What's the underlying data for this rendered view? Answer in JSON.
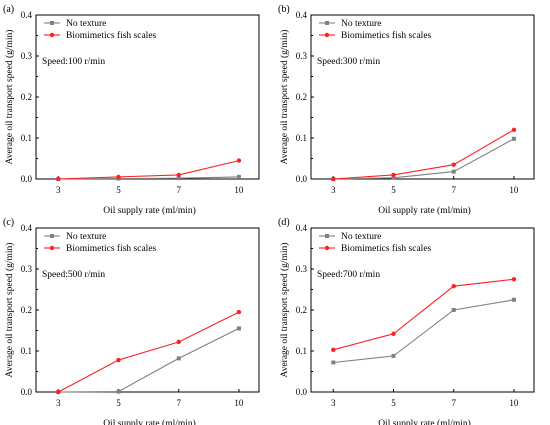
{
  "chart_data": [
    {
      "type": "line",
      "panel_label": "(a)",
      "annotation": "Speed:100 r/min",
      "xlabel": "Oil supply rate (ml/min)",
      "ylabel": "Average oil transport speed (g/min)",
      "categories": [
        "3",
        "5",
        "7",
        "10"
      ],
      "ylim": [
        0,
        0.4
      ],
      "yticks": [
        "0.0",
        "0.1",
        "0.2",
        "0.3",
        "0.4"
      ],
      "legend_position": "top-left",
      "series": [
        {
          "name": "No texture",
          "color": "#808080",
          "values": [
            0.0,
            0.001,
            0.002,
            0.005
          ]
        },
        {
          "name": "Biomimetics fish scales",
          "color": "#ff2020",
          "values": [
            0.0,
            0.005,
            0.01,
            0.045
          ]
        }
      ]
    },
    {
      "type": "line",
      "panel_label": "(b)",
      "annotation": "Speed:300 r/min",
      "xlabel": "Oil supply rate (ml/min)",
      "ylabel": "Average oil transport speed (g/min)",
      "categories": [
        "3",
        "5",
        "7",
        "10"
      ],
      "ylim": [
        0,
        0.4
      ],
      "yticks": [
        "0.0",
        "0.1",
        "0.2",
        "0.3",
        "0.4"
      ],
      "legend_position": "top-left",
      "series": [
        {
          "name": "No texture",
          "color": "#808080",
          "values": [
            0.0,
            0.003,
            0.018,
            0.098
          ]
        },
        {
          "name": "Biomimetics fish scales",
          "color": "#ff2020",
          "values": [
            0.0,
            0.01,
            0.035,
            0.12
          ]
        }
      ]
    },
    {
      "type": "line",
      "panel_label": "(c)",
      "annotation": "Speed:500 r/min",
      "xlabel": "Oil supply rate (ml/min)",
      "ylabel": "Average oil transport speed (g/min)",
      "categories": [
        "3",
        "5",
        "7",
        "10"
      ],
      "ylim": [
        0,
        0.4
      ],
      "yticks": [
        "0.0",
        "0.1",
        "0.2",
        "0.3",
        "0.4"
      ],
      "legend_position": "top-left",
      "series": [
        {
          "name": "No texture",
          "color": "#808080",
          "values": [
            0.0,
            0.001,
            0.082,
            0.155
          ]
        },
        {
          "name": "Biomimetics fish scales",
          "color": "#ff2020",
          "values": [
            0.0,
            0.078,
            0.122,
            0.195
          ]
        }
      ]
    },
    {
      "type": "line",
      "panel_label": "(d)",
      "annotation": "Speed:700 r/min",
      "xlabel": "Oil supply rate (ml/min)",
      "ylabel": "Average oil transport speed (g/min)",
      "categories": [
        "3",
        "5",
        "7",
        "10"
      ],
      "ylim": [
        0,
        0.4
      ],
      "yticks": [
        "0.0",
        "0.1",
        "0.2",
        "0.3",
        "0.4"
      ],
      "legend_position": "top-left",
      "series": [
        {
          "name": "No texture",
          "color": "#808080",
          "values": [
            0.072,
            0.088,
            0.2,
            0.225
          ]
        },
        {
          "name": "Biomimetics fish scales",
          "color": "#ff2020",
          "values": [
            0.103,
            0.142,
            0.258,
            0.275
          ]
        }
      ]
    }
  ]
}
